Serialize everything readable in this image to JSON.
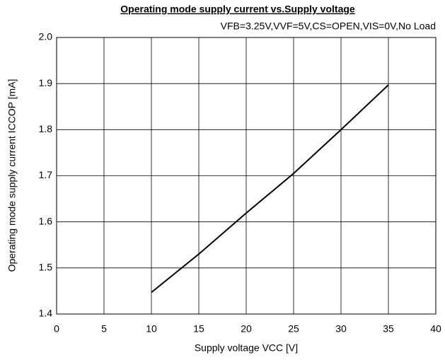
{
  "chart_data": {
    "type": "line",
    "title": "Operating mode supply current vs.Supply voltage",
    "subtitle": "VFB=3.25V,VVF=5V,CS=OPEN,VIS=0V,No Load",
    "x_label": "Supply voltage VCC [V]",
    "y_label": "Operating mode supply current ICCOP [mA]",
    "series": [
      {
        "name": "ICCOP",
        "color": "#000000",
        "x": [
          10,
          15,
          20,
          25,
          30,
          35
        ],
        "values": [
          1.447,
          1.53,
          1.619,
          1.705,
          1.8,
          1.897
        ]
      }
    ],
    "xlim": [
      0,
      40
    ],
    "xticks": [
      0,
      5,
      10,
      15,
      20,
      25,
      30,
      35,
      40
    ],
    "ylim": [
      1.4,
      2.0
    ],
    "yticks": [
      1.4,
      1.5,
      1.6,
      1.7,
      1.8,
      1.9,
      {
        "value": 2.0,
        "label": "2.0"
      }
    ],
    "grid": true
  }
}
